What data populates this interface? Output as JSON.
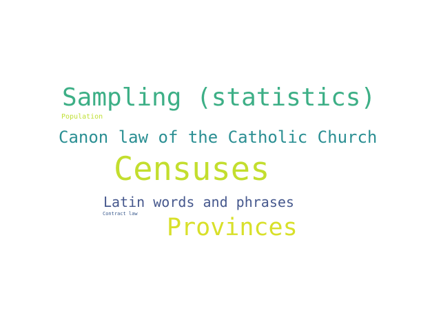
{
  "word_cloud": {
    "words": [
      {
        "id": "w-sampling",
        "text": "Sampling (statistics)",
        "color": "#3daf86"
      },
      {
        "id": "w-population",
        "text": "Population",
        "color": "#bfe034"
      },
      {
        "id": "w-canon",
        "text": "Canon law of the Catholic Church",
        "color": "#2b8f93"
      },
      {
        "id": "w-censuses",
        "text": "Censuses",
        "color": "#c3de2e"
      },
      {
        "id": "w-latin",
        "text": "Latin words and phrases",
        "color": "#46588d"
      },
      {
        "id": "w-contract",
        "text": "Contract law",
        "color": "#3b5b8e"
      },
      {
        "id": "w-provinces",
        "text": "Provinces",
        "color": "#d8e02a"
      }
    ]
  }
}
